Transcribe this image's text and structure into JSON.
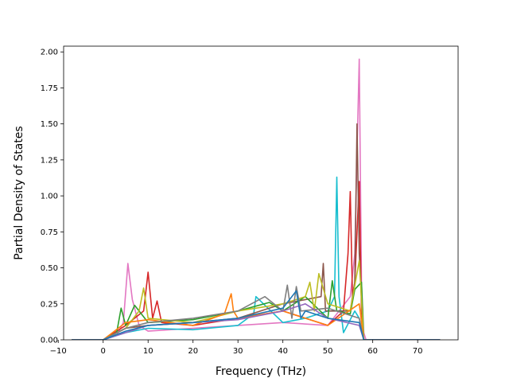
{
  "chart_data": {
    "type": "line",
    "title": "",
    "xlabel": "Frequency (THz)",
    "ylabel": "Partial Density of States",
    "xlim": [
      -8.8,
      79.0
    ],
    "ylim": [
      0.0,
      2.04
    ],
    "xticks": [
      -10,
      0,
      10,
      20,
      30,
      40,
      50,
      60,
      70
    ],
    "xtick_labels": [
      "−10",
      "0",
      "10",
      "20",
      "30",
      "40",
      "50",
      "60",
      "70"
    ],
    "yticks": [
      0.0,
      0.25,
      0.5,
      0.75,
      1.0,
      1.25,
      1.5,
      1.75,
      2.0
    ],
    "ytick_labels": [
      "0.00",
      "0.25",
      "0.50",
      "0.75",
      "1.00",
      "1.25",
      "1.50",
      "1.75",
      "2.00"
    ],
    "grid": false,
    "legend": "none",
    "series_colors": [
      "#1f77b4",
      "#ff7f0e",
      "#2ca02c",
      "#d62728",
      "#9467bd",
      "#8c564b",
      "#e377c2",
      "#7f7f7f",
      "#bcbd22",
      "#17becf"
    ],
    "series": [
      {
        "color": "#e377c2",
        "x": [
          -7,
          0,
          3,
          4.5,
          5.5,
          6.5,
          8,
          10,
          20,
          30,
          40,
          50,
          55,
          56,
          56.5,
          57,
          57.5,
          58,
          58.5,
          75
        ],
        "y": [
          0,
          0,
          0.03,
          0.12,
          0.53,
          0.28,
          0.1,
          0.06,
          0.08,
          0.1,
          0.12,
          0.1,
          0.3,
          0.6,
          1.3,
          1.95,
          0.4,
          0.05,
          0,
          0
        ]
      },
      {
        "color": "#17becf",
        "x": [
          -7,
          0,
          5,
          10,
          20,
          30,
          33.5,
          34,
          40,
          45,
          50,
          51.5,
          52,
          52.5,
          53.5,
          56,
          57,
          58,
          75
        ],
        "y": [
          0,
          0,
          0.05,
          0.08,
          0.07,
          0.1,
          0.18,
          0.3,
          0.12,
          0.15,
          0.2,
          0.3,
          1.13,
          0.3,
          0.05,
          0.2,
          0.15,
          0,
          0
        ]
      },
      {
        "color": "#d62728",
        "x": [
          -7,
          0,
          5,
          9,
          10,
          11,
          12,
          13,
          20,
          30,
          40,
          50,
          53.5,
          54.5,
          55,
          55.5,
          56,
          57,
          57.5,
          58,
          75
        ],
        "y": [
          0,
          0,
          0.1,
          0.2,
          0.47,
          0.15,
          0.27,
          0.12,
          0.1,
          0.15,
          0.2,
          0.1,
          0.2,
          0.6,
          1.03,
          0.3,
          0.4,
          1.1,
          0.2,
          0,
          0
        ]
      },
      {
        "color": "#8c564b",
        "x": [
          -7,
          0,
          5,
          10,
          20,
          30,
          40,
          48.5,
          49,
          49.5,
          55,
          56,
          56.5,
          57,
          58,
          75
        ],
        "y": [
          0,
          0,
          0.08,
          0.1,
          0.12,
          0.15,
          0.25,
          0.3,
          0.53,
          0.2,
          0.2,
          0.4,
          1.5,
          0.6,
          0,
          0
        ]
      },
      {
        "color": "#2ca02c",
        "x": [
          -7,
          0,
          3,
          4,
          5,
          7,
          10,
          20,
          30,
          37,
          40,
          45,
          50,
          51,
          52,
          55,
          56,
          57.5,
          58,
          75
        ],
        "y": [
          0,
          0,
          0.05,
          0.22,
          0.1,
          0.24,
          0.12,
          0.14,
          0.2,
          0.26,
          0.2,
          0.3,
          0.15,
          0.41,
          0.2,
          0.18,
          0.35,
          0.4,
          0,
          0
        ]
      },
      {
        "color": "#bcbd22",
        "x": [
          -7,
          0,
          5,
          8,
          9,
          10,
          20,
          30,
          40,
          45,
          46,
          47,
          48,
          50,
          55,
          57,
          58,
          75
        ],
        "y": [
          0,
          0,
          0.08,
          0.2,
          0.36,
          0.15,
          0.12,
          0.2,
          0.25,
          0.3,
          0.4,
          0.2,
          0.46,
          0.25,
          0.2,
          0.55,
          0,
          0
        ]
      },
      {
        "color": "#ff7f0e",
        "x": [
          -7,
          0,
          5,
          10,
          20,
          27,
          28.5,
          29,
          30,
          40,
          50,
          57,
          58,
          75
        ],
        "y": [
          0,
          0,
          0.12,
          0.14,
          0.1,
          0.18,
          0.32,
          0.2,
          0.15,
          0.2,
          0.1,
          0.25,
          0,
          0
        ]
      },
      {
        "color": "#7f7f7f",
        "x": [
          -7,
          0,
          5,
          10,
          20,
          30,
          36,
          40,
          41,
          42,
          43,
          44,
          50,
          57,
          58,
          75
        ],
        "y": [
          0,
          0,
          0.08,
          0.12,
          0.15,
          0.2,
          0.3,
          0.2,
          0.38,
          0.15,
          0.37,
          0.2,
          0.22,
          0.15,
          0,
          0
        ]
      },
      {
        "color": "#9467bd",
        "x": [
          -7,
          0,
          5,
          10,
          20,
          30,
          40,
          45,
          50,
          57,
          58,
          75
        ],
        "y": [
          0,
          0,
          0.05,
          0.1,
          0.12,
          0.14,
          0.2,
          0.25,
          0.15,
          0.1,
          0,
          0
        ]
      },
      {
        "color": "#1f77b4",
        "x": [
          -7,
          0,
          5,
          10,
          20,
          30,
          40,
          43,
          44,
          45,
          50,
          57,
          58,
          75
        ],
        "y": [
          0,
          0,
          0.06,
          0.1,
          0.12,
          0.15,
          0.22,
          0.34,
          0.15,
          0.2,
          0.15,
          0.12,
          0,
          0
        ]
      }
    ]
  }
}
